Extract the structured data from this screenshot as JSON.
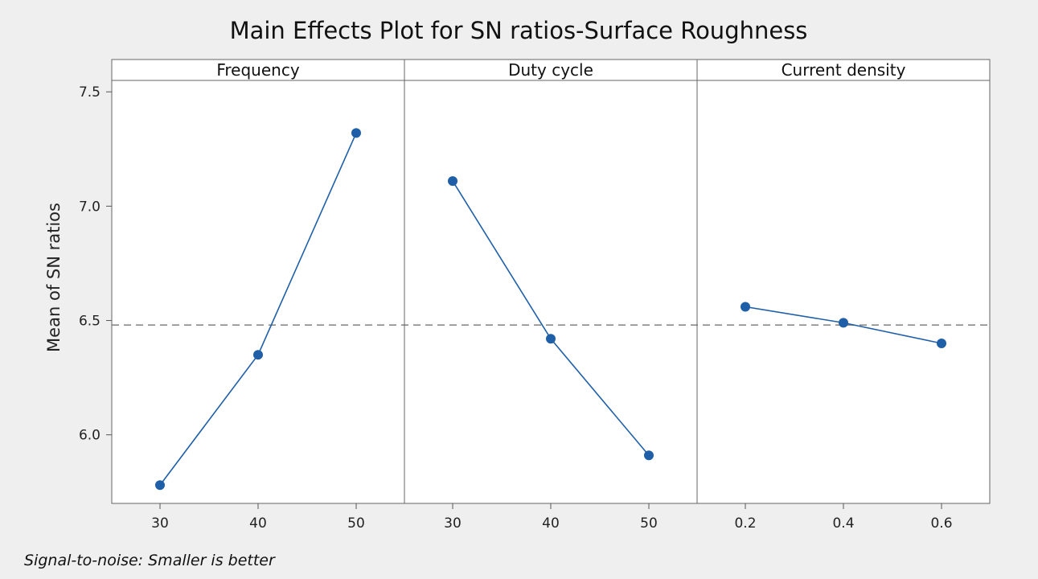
{
  "chart_data": {
    "type": "line",
    "title": "Main Effects Plot for SN ratios-Surface Roughness",
    "ylabel": "Mean of SN ratios",
    "ylim": [
      5.7,
      7.55
    ],
    "yticks": [
      6.0,
      6.5,
      7.0,
      7.5
    ],
    "ytick_labels": [
      "6.0",
      "6.5",
      "7.0",
      "7.5"
    ],
    "reference_line": {
      "value": 6.48,
      "style": "dashed",
      "color": "#8a8a8a"
    },
    "series_color": "#1f5fa8",
    "grid": false,
    "panels": [
      {
        "label": "Frequency",
        "x_labels": [
          "30",
          "40",
          "50"
        ],
        "values": [
          5.78,
          6.35,
          7.32
        ]
      },
      {
        "label": "Duty cycle",
        "x_labels": [
          "30",
          "40",
          "50"
        ],
        "values": [
          7.11,
          6.42,
          5.91
        ]
      },
      {
        "label": "Current density",
        "x_labels": [
          "0.2",
          "0.4",
          "0.6"
        ],
        "values": [
          6.56,
          6.49,
          6.4
        ]
      }
    ],
    "footnote": "Signal-to-noise: Smaller is better"
  }
}
